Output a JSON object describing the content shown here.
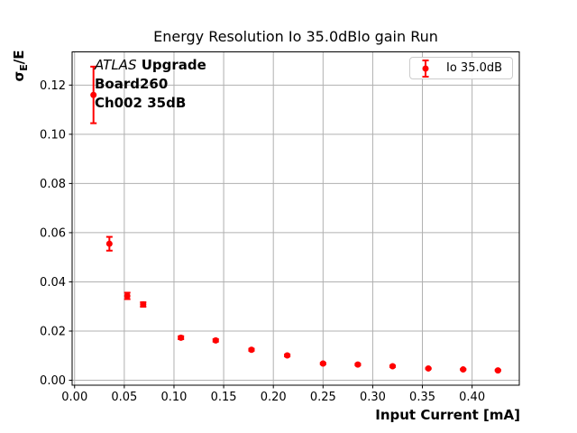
{
  "figure": {
    "title": "Energy Resolution Io 35.0dBlo gain Run"
  },
  "axes": {
    "ylabel_sigma": "σ",
    "ylabel_sub": "E",
    "ylabel_rest": "/E",
    "xlabel": "Input Current [mA]"
  },
  "annotation": {
    "experiment": "ATLAS",
    "line1_rest": " Upgrade",
    "line2": "Board260",
    "line3": "Ch002 35dB"
  },
  "legend": {
    "label": "Io 35.0dB"
  },
  "colors": {
    "series": "#ff0000",
    "grid": "#b0b0b0",
    "spine": "#000000",
    "legend_border": "#cccccc"
  },
  "chart_data": {
    "type": "scatter",
    "title": "Energy Resolution Io 35.0dBlo gain Run",
    "xlabel": "Input Current [mA]",
    "ylabel": "sigma_E/E",
    "grid": true,
    "legend_position": "upper right",
    "xlim": [
      -0.0025,
      0.4475
    ],
    "ylim": [
      -0.002,
      0.1335
    ],
    "xticks": {
      "values": [
        0.0,
        0.05,
        0.1,
        0.15,
        0.2,
        0.25,
        0.3,
        0.35,
        0.4
      ],
      "labels": [
        "0.00",
        "0.05",
        "0.10",
        "0.15",
        "0.20",
        "0.25",
        "0.30",
        "0.35",
        "0.40"
      ]
    },
    "yticks": {
      "values": [
        0.0,
        0.02,
        0.04,
        0.06,
        0.08,
        0.1,
        0.12
      ],
      "labels": [
        "0.00",
        "0.02",
        "0.04",
        "0.06",
        "0.08",
        "0.10",
        "0.12"
      ]
    },
    "series": [
      {
        "name": "Io 35.0dB",
        "color": "#ff0000",
        "marker": "circle",
        "marker_radius": 3.5,
        "x": [
          0.019,
          0.035,
          0.053,
          0.069,
          0.107,
          0.142,
          0.178,
          0.214,
          0.25,
          0.285,
          0.32,
          0.356,
          0.391,
          0.426
        ],
        "y": [
          0.116,
          0.0555,
          0.0343,
          0.0308,
          0.0173,
          0.0162,
          0.0124,
          0.0101,
          0.0068,
          0.0064,
          0.0057,
          0.0048,
          0.0044,
          0.004
        ],
        "yerr": [
          0.0115,
          0.0028,
          0.0013,
          0.0009,
          0.0006,
          0.0005,
          0.0004,
          0.0004,
          0.0003,
          0.0003,
          0.0003,
          0.0002,
          0.0002,
          0.0002
        ]
      }
    ]
  }
}
